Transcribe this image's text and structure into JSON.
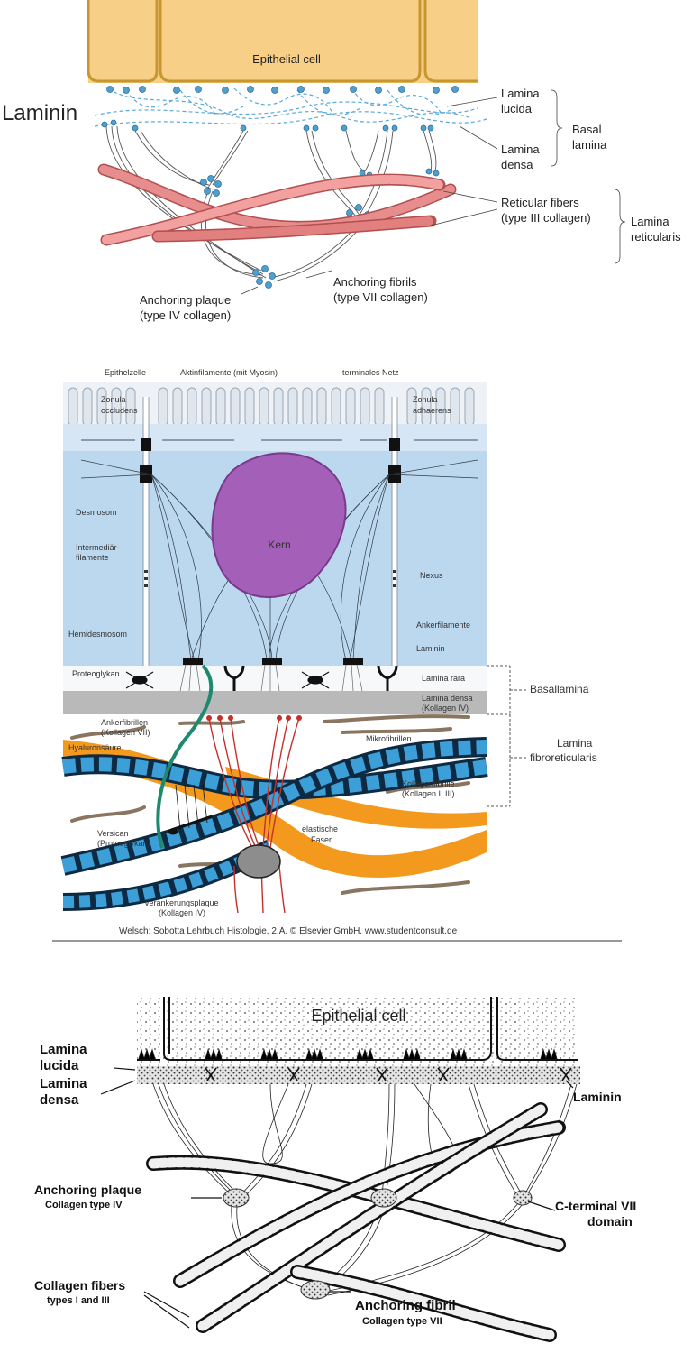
{
  "panel1": {
    "epithelial_cell": "Epithelial cell",
    "laminin": "Laminin",
    "lamina_lucida": [
      "Lamina",
      "lucida"
    ],
    "lamina_densa": [
      "Lamina",
      "densa"
    ],
    "basal_lamina": [
      "Basal",
      "lamina"
    ],
    "reticular_fibers": [
      "Reticular fibers",
      "(type III collagen)"
    ],
    "lamina_reticularis": [
      "Lamina",
      "reticularis"
    ],
    "anchoring_fibrils": [
      "Anchoring fibrils",
      "(type VII collagen)"
    ],
    "anchoring_plaque": [
      "Anchoring plaque",
      "(type IV collagen)"
    ],
    "colors": {
      "cell": "#f7cf87",
      "cell_border": "#c8962e",
      "laminin": "#5aa9d6",
      "fiber": "#e27f7f"
    }
  },
  "panel2": {
    "epithelzelle": "Epithelzelle",
    "aktinfilamente": "Aktinfilamente (mit Myosin)",
    "terminales_netz": "terminales Netz",
    "zonula_occludens": [
      "Zonula",
      "occludens"
    ],
    "zonula_adhaerens": [
      "Zonula",
      "adhaerens"
    ],
    "desmosom": "Desmosom",
    "intermediaer": [
      "Intermediär-",
      "filamente"
    ],
    "kern": "Kern",
    "nexus": "Nexus",
    "ankerfilamente": "Ankerfilamente",
    "hemidesmosom": "Hemidesmosom",
    "laminin": "Laminin",
    "proteoglykan": "Proteoglykan",
    "lamina_rara": "Lamina rara",
    "lamina_densa": [
      "Lamina densa",
      "(Kollagen IV)"
    ],
    "basallamina": "Basallamina",
    "ankerfibrillen": [
      "Ankerfibrillen",
      "(Kollagen VII)"
    ],
    "mikrofibrillen": "Mikrofibrillen",
    "lamina_fibroreticularis": [
      "Lamina",
      "fibroreticularis"
    ],
    "hyaluronsaeure": "Hyaluronsäure",
    "kollagenfibrille": [
      "Kollagenfibrille",
      "(Kollagen I, III)"
    ],
    "versican": [
      "Versican",
      "(Proteoglykan)"
    ],
    "elastische_faser": [
      "elastische",
      "Faser"
    ],
    "verankerungsplaque": [
      "Verankerungsplaque",
      "(Kollagen IV)"
    ],
    "credit": "Welsch: Sobotta Lehrbuch Histologie, 2.A. © Elsevier GmbH. www.studentconsult.de",
    "colors": {
      "cell": "#bcd8ef",
      "nucleus": "#a45fb8",
      "elastic": "#f39a1e",
      "collagen": "#3c9fd8",
      "densa": "#b9b9b9"
    }
  },
  "panel3": {
    "epithelial_cell": "Epithelial cell",
    "lamina_lucida": [
      "Lamina",
      "lucida"
    ],
    "lamina_densa": [
      "Lamina",
      "densa"
    ],
    "laminin": "Laminin",
    "anchoring_plaque": [
      "Anchoring plaque",
      "Collagen type IV"
    ],
    "c_terminal": [
      "C-terminal VII",
      "domain"
    ],
    "collagen_fibers": [
      "Collagen fibers",
      "types I and III"
    ],
    "anchoring_fibril": [
      "Anchoring fibril",
      "Collagen type VII"
    ]
  }
}
